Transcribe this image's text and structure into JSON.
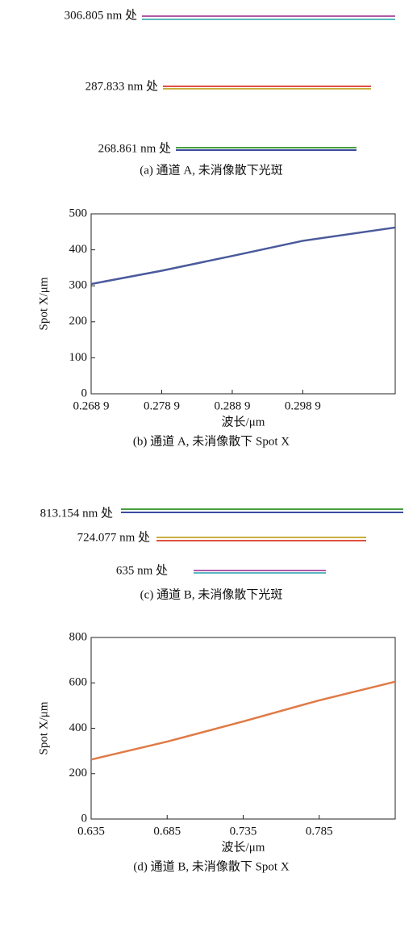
{
  "spots_a": {
    "labels": [
      "306.805 nm 处",
      "287.833 nm 处",
      "268.861 nm 处"
    ],
    "caption": "(a) 通道 A, 未消像散下光斑"
  },
  "spots_b": {
    "labels": [
      "813.154 nm 处",
      "724.077 nm 处",
      "635 nm 处"
    ],
    "caption": "(c) 通道 B, 未消像散下光斑"
  },
  "chart_data": [
    {
      "type": "line",
      "caption": "(b) 通道 A, 未消像散下 Spot X",
      "x_label": "波长/μm",
      "y_label": "Spot X/μm",
      "x": [
        0.2689,
        0.2789,
        0.2889,
        0.2989,
        0.312
      ],
      "series": [
        {
          "color": "#4a5a9c",
          "values": [
            305,
            342,
            383,
            425,
            462
          ]
        }
      ],
      "xlim": [
        0.2689,
        0.312
      ],
      "ylim": [
        0,
        500
      ],
      "xticks": [
        {
          "value": 0.2689,
          "label": "0.268 9"
        },
        {
          "value": 0.2789,
          "label": "0.278 9"
        },
        {
          "value": 0.2889,
          "label": "0.288 9"
        },
        {
          "value": 0.2989,
          "label": "0.298 9"
        }
      ],
      "yticks": [
        0,
        100,
        200,
        300,
        400,
        500
      ]
    },
    {
      "type": "line",
      "caption": "(d) 通道 B, 未消像散下 Spot X",
      "x_label": "波长/μm",
      "y_label": "Spot X/μm",
      "x": [
        0.635,
        0.685,
        0.735,
        0.785,
        0.835
      ],
      "series": [
        {
          "color": "#e07a45",
          "values": [
            262,
            341,
            430,
            523,
            605
          ]
        }
      ],
      "xlim": [
        0.635,
        0.835
      ],
      "ylim": [
        0,
        800
      ],
      "xticks": [
        0.635,
        0.685,
        0.735,
        0.785
      ],
      "yticks": [
        0,
        200,
        400,
        600,
        800
      ]
    }
  ]
}
